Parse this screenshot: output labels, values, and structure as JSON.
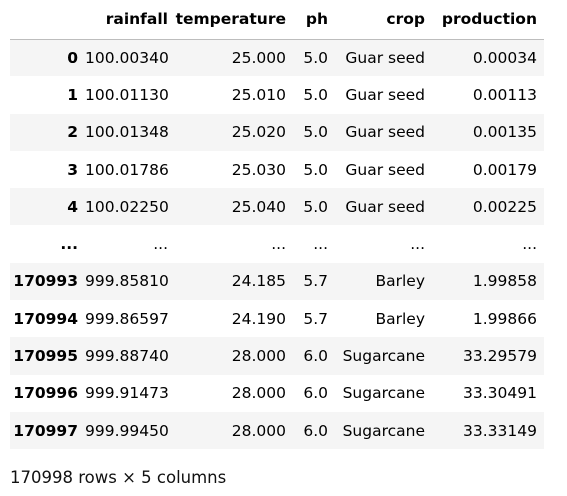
{
  "table": {
    "columns": [
      "",
      "rainfall",
      "temperature",
      "ph",
      "crop",
      "production"
    ],
    "rows": [
      {
        "index": "0",
        "cells": [
          "100.00340",
          "25.000",
          "5.0",
          "Guar seed",
          "0.00034"
        ]
      },
      {
        "index": "1",
        "cells": [
          "100.01130",
          "25.010",
          "5.0",
          "Guar seed",
          "0.00113"
        ]
      },
      {
        "index": "2",
        "cells": [
          "100.01348",
          "25.020",
          "5.0",
          "Guar seed",
          "0.00135"
        ]
      },
      {
        "index": "3",
        "cells": [
          "100.01786",
          "25.030",
          "5.0",
          "Guar seed",
          "0.00179"
        ]
      },
      {
        "index": "4",
        "cells": [
          "100.02250",
          "25.040",
          "5.0",
          "Guar seed",
          "0.00225"
        ]
      },
      {
        "index": "...",
        "cells": [
          "...",
          "...",
          "...",
          "...",
          "..."
        ]
      },
      {
        "index": "170993",
        "cells": [
          "999.85810",
          "24.185",
          "5.7",
          "Barley",
          "1.99858"
        ]
      },
      {
        "index": "170994",
        "cells": [
          "999.86597",
          "24.190",
          "5.7",
          "Barley",
          "1.99866"
        ]
      },
      {
        "index": "170995",
        "cells": [
          "999.88740",
          "28.000",
          "6.0",
          "Sugarcane",
          "33.29579"
        ]
      },
      {
        "index": "170996",
        "cells": [
          "999.91473",
          "28.000",
          "6.0",
          "Sugarcane",
          "33.30491"
        ]
      },
      {
        "index": "170997",
        "cells": [
          "999.99450",
          "28.000",
          "6.0",
          "Sugarcane",
          "33.33149"
        ]
      }
    ]
  },
  "shape_info": "170998 rows × 5 columns"
}
